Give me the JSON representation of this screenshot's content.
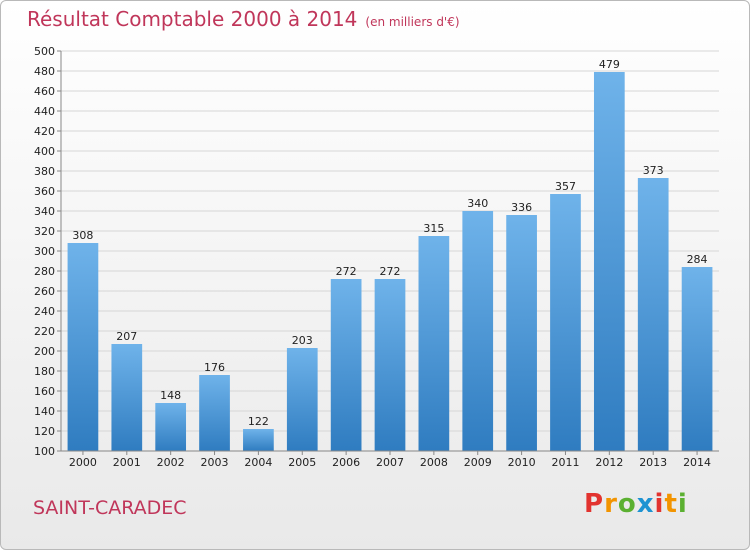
{
  "header": {
    "title": "Résultat Comptable 2000 à 2014",
    "subtitle": "(en milliers d'€)"
  },
  "footer": {
    "commune": "SAINT-CARADEC",
    "logo": [
      "P",
      "r",
      "o",
      "x",
      "i",
      "t",
      "i"
    ]
  },
  "colors": {
    "title": "#c0365a",
    "bar_top": "#6fb3ea",
    "bar_bottom": "#2f7cc0",
    "logo": [
      "#e2332f",
      "#f29400",
      "#5bb031",
      "#1e93d2",
      "#e2332f",
      "#f29400",
      "#5bb031"
    ]
  },
  "chart_data": {
    "type": "bar",
    "title": "Résultat Comptable 2000 à 2014",
    "subtitle": "(en milliers d'€)",
    "categories": [
      "2000",
      "2001",
      "2002",
      "2003",
      "2004",
      "2005",
      "2006",
      "2007",
      "2008",
      "2009",
      "2010",
      "2011",
      "2012",
      "2013",
      "2014"
    ],
    "values": [
      308,
      207,
      148,
      176,
      122,
      203,
      272,
      272,
      315,
      340,
      336,
      357,
      479,
      373,
      284
    ],
    "ylim": [
      100,
      500
    ],
    "ytick_step": 20,
    "grid": true,
    "legend": "none"
  }
}
